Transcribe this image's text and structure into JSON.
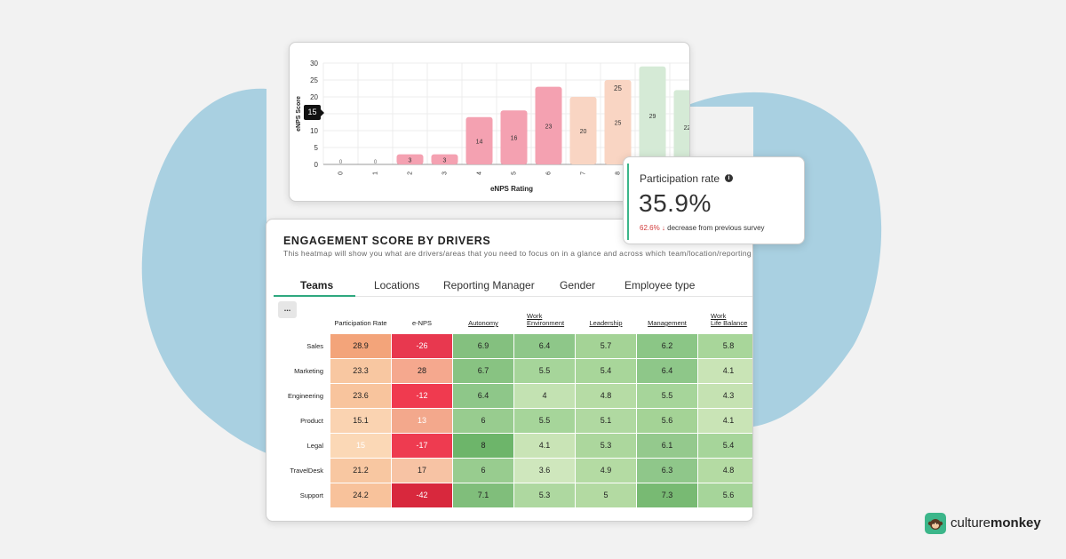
{
  "enps_chart": {
    "chart_data": {
      "type": "bar",
      "categories": [
        "0",
        "1",
        "2",
        "3",
        "4",
        "5",
        "6",
        "7",
        "8",
        "9",
        "10"
      ],
      "values": [
        0,
        0,
        3,
        3,
        14,
        16,
        23,
        20,
        25,
        29,
        22
      ],
      "xlabel": "eNPS Rating",
      "ylabel": "eNPS Score",
      "ylim": [
        0,
        30
      ],
      "yticks": [
        "0",
        "5",
        "10",
        "15",
        "20",
        "25",
        "30"
      ],
      "grid": true
    },
    "tooltip_value": "15",
    "hover_label": "25",
    "colors": {
      "detractor": "#f4a1b1",
      "passive": "#f9d5c3",
      "promoter": "#d5ead6",
      "grid": "#ececec"
    }
  },
  "participation": {
    "title": "Participation rate",
    "value": "35.9%",
    "change_pct": "62.6%",
    "change_text": "decrease from previous survey",
    "accent": "#3cb68a"
  },
  "heatmap": {
    "title": "ENGAGEMENT SCORE BY DRIVERS",
    "subtitle": "This heatmap will show you what are drivers/areas that you need to focus on in a glance and across which team/location/reporting",
    "tabs": [
      "Teams",
      "Locations",
      "Reporting Manager",
      "Gender",
      "Employee type"
    ],
    "active_tab": "Teams",
    "more_button": "...",
    "columns": [
      "Participation Rate",
      "e-NPS",
      "Autonomy",
      "Work Environment",
      "Leadership",
      "Management",
      "Work Life Balance"
    ],
    "rows": [
      {
        "label": "Sales",
        "values": [
          "28.9",
          "-26",
          "6.9",
          "6.4",
          "5.7",
          "6.2",
          "5.8"
        ]
      },
      {
        "label": "Marketing",
        "values": [
          "23.3",
          "28",
          "6.7",
          "5.5",
          "5.4",
          "6.4",
          "4.1"
        ]
      },
      {
        "label": "Engineering",
        "values": [
          "23.6",
          "-12",
          "6.4",
          "4",
          "4.8",
          "5.5",
          "4.3"
        ]
      },
      {
        "label": "Product",
        "values": [
          "15.1",
          "13",
          "6",
          "5.5",
          "5.1",
          "5.6",
          "4.1"
        ]
      },
      {
        "label": "Legal",
        "values": [
          "15",
          "-17",
          "8",
          "4.1",
          "5.3",
          "6.1",
          "5.4"
        ]
      },
      {
        "label": "TravelDesk",
        "values": [
          "21.2",
          "17",
          "6",
          "3.6",
          "4.9",
          "6.3",
          "4.8"
        ]
      },
      {
        "label": "Support",
        "values": [
          "24.2",
          "-42",
          "7.1",
          "5.3",
          "5",
          "7.3",
          "5.6"
        ]
      }
    ],
    "cell_colors": [
      [
        "#f3a47a",
        "#e8384f",
        "#84c07f",
        "#8ec789",
        "#a4d396",
        "#8bc686",
        "#a8d69a"
      ],
      [
        "#f8c7a1",
        "#f5a88e",
        "#88c382",
        "#a6d59a",
        "#a8d69a",
        "#8ec789",
        "#c9e4b6"
      ],
      [
        "#f8c49d",
        "#f03a4f",
        "#8ec789",
        "#c3e2b2",
        "#b6dca5",
        "#a6d59a",
        "#c5e2b2"
      ],
      [
        "#fad3b1",
        "#f3a88c",
        "#98cc8f",
        "#a6d59a",
        "#b0d9a1",
        "#a4d396",
        "#c9e4b6"
      ],
      [
        "#fbd8b6",
        "#ee3b50",
        "#6db56a",
        "#c9e4b6",
        "#acd79d",
        "#94c98d",
        "#a6d59a"
      ],
      [
        "#f8c7a1",
        "#f7c3a4",
        "#98cc8f",
        "#cfe7bd",
        "#b4dba3",
        "#8fc78a",
        "#b4dba3"
      ],
      [
        "#f8c29b",
        "#d8283d",
        "#80be7b",
        "#aed8a0",
        "#b3daa2",
        "#78ba73",
        "#a6d59a"
      ]
    ],
    "light_text_cells": [
      [
        0,
        1
      ],
      [
        2,
        1
      ],
      [
        3,
        1
      ],
      [
        4,
        0
      ],
      [
        4,
        1
      ],
      [
        6,
        1
      ]
    ]
  },
  "brand": {
    "name_part1": "culture",
    "name_part2": "monkey",
    "color": "#3cb68a"
  },
  "background": {
    "blob_color": "#a9d0e1"
  }
}
